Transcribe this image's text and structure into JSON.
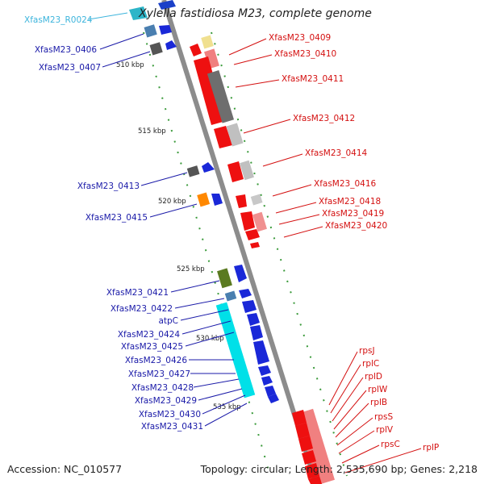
{
  "title": "Xylella fastidiosa M23, complete genome",
  "accession_text": "Accession: NC_010577",
  "summary_text": "Topology: circular; Length: 2,535,690 bp; Genes: 2,218",
  "colors": {
    "forward_label": "#1a1aa8",
    "reverse_label": "#d41010",
    "rna_label": "#3cb4dc",
    "track_line": "#8c8c8c",
    "tick_green": "#2e8b2e"
  },
  "ticks": [
    {
      "label": "510 kbp"
    },
    {
      "label": "515 kbp"
    },
    {
      "label": "520 kbp"
    },
    {
      "label": "525 kbp"
    },
    {
      "label": "530 kbp"
    },
    {
      "label": "535 kbp"
    }
  ],
  "rna_labels": [
    {
      "label": "XfasM23_R0024"
    }
  ],
  "forward_labels": [
    {
      "label": "XfasM23_0406"
    },
    {
      "label": "XfasM23_0407"
    },
    {
      "label": "XfasM23_0413"
    },
    {
      "label": "XfasM23_0415"
    },
    {
      "label": "XfasM23_0421"
    },
    {
      "label": "XfasM23_0422"
    },
    {
      "label": "atpC"
    },
    {
      "label": "XfasM23_0424"
    },
    {
      "label": "XfasM23_0425"
    },
    {
      "label": "XfasM23_0426"
    },
    {
      "label": "XfasM23_0427"
    },
    {
      "label": "XfasM23_0428"
    },
    {
      "label": "XfasM23_0429"
    },
    {
      "label": "XfasM23_0430"
    },
    {
      "label": "XfasM23_0431"
    }
  ],
  "reverse_labels": [
    {
      "label": "XfasM23_0409"
    },
    {
      "label": "XfasM23_0410"
    },
    {
      "label": "XfasM23_0411"
    },
    {
      "label": "XfasM23_0412"
    },
    {
      "label": "XfasM23_0414"
    },
    {
      "label": "XfasM23_0416"
    },
    {
      "label": "XfasM23_0418"
    },
    {
      "label": "XfasM23_0419"
    },
    {
      "label": "XfasM23_0420"
    },
    {
      "label": "rpsJ"
    },
    {
      "label": "rplC"
    },
    {
      "label": "rplD"
    },
    {
      "label": "rplW"
    },
    {
      "label": "rplB"
    },
    {
      "label": "rpsS"
    },
    {
      "label": "rplV"
    },
    {
      "label": "rpsC"
    },
    {
      "label": "rplP"
    }
  ]
}
